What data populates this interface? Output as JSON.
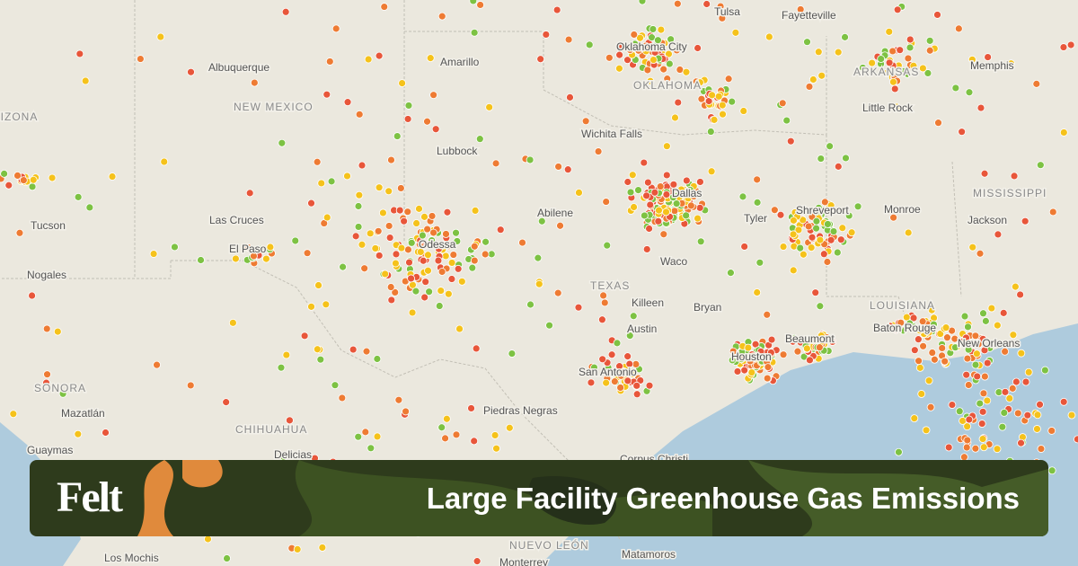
{
  "header": {
    "brand": "Felt",
    "title": "Large Facility Greenhouse Gas Emissions"
  },
  "map": {
    "regions": [
      "ARIZONA",
      "NEW MEXICO",
      "OKLAHOMA",
      "ARKANSAS",
      "MISSISSIPPI",
      "TEXAS",
      "LOUISIANA",
      "SONORA",
      "CHIHUAHUA",
      "NUEVO LEÓN"
    ],
    "cities": [
      "Albuquerque",
      "Amarillo",
      "Oklahoma City",
      "Tulsa",
      "Fayetteville",
      "Memphis",
      "Little Rock",
      "Lubbock",
      "Wichita Falls",
      "Dallas",
      "Shreveport",
      "Monroe",
      "Jackson",
      "Tyler",
      "Abilene",
      "Las Cruces",
      "El Paso",
      "Tucson",
      "Nogales",
      "Odessa",
      "Waco",
      "Killeen",
      "Bryan",
      "Baton Rouge",
      "Beaumont",
      "Austin",
      "New Orleans",
      "Houston",
      "San Antonio",
      "Mazatlán",
      "Piedras Negras",
      "Guaymas",
      "Delicias",
      "Corpus Christi",
      "Matamoros",
      "Los Mochis",
      "Monterrey"
    ]
  }
}
